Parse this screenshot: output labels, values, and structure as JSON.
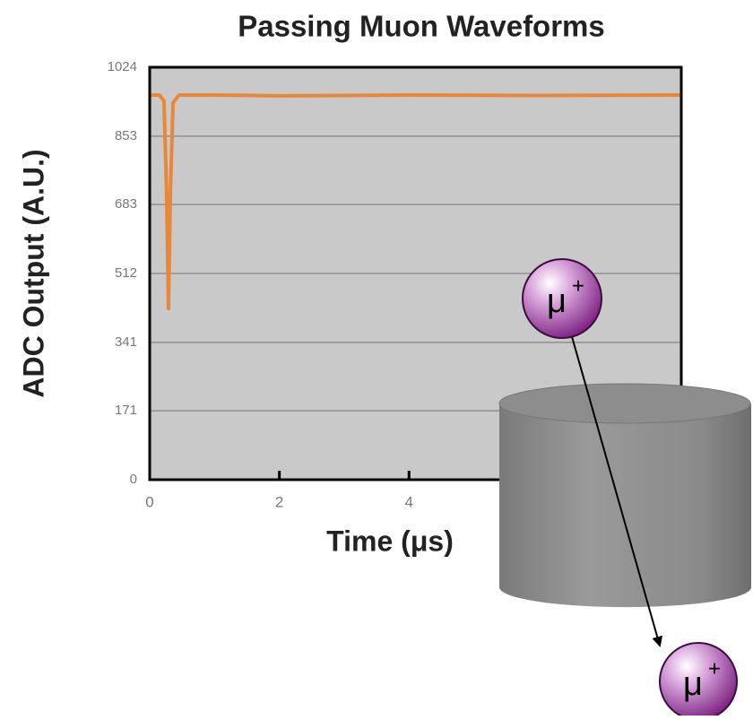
{
  "chart_data": {
    "type": "line",
    "title": "Passing Muon Waveforms",
    "x_label": "Time (μs)",
    "y_label": "ADC Output (A.U.)",
    "xlim": [
      0,
      8.2
    ],
    "xticks": [
      0,
      2,
      4
    ],
    "ylim": [
      0,
      1024
    ],
    "yticks": [
      0,
      171,
      341,
      512,
      683,
      853,
      1024
    ],
    "grid": true,
    "x": [
      0,
      0.15,
      0.22,
      0.26,
      0.29,
      0.32,
      0.36,
      0.45,
      1,
      2,
      4,
      6,
      8,
      8.2
    ],
    "series": [
      {
        "color": "#e8873a",
        "values": [
          955,
          955,
          940,
          720,
          425,
          720,
          935,
          955,
          955,
          953,
          955,
          954,
          955,
          955
        ]
      }
    ]
  },
  "diagram": {
    "muon_in": {
      "symbol": "μ",
      "charge": "+"
    },
    "muon_out": {
      "symbol": "μ",
      "charge": "+"
    }
  }
}
